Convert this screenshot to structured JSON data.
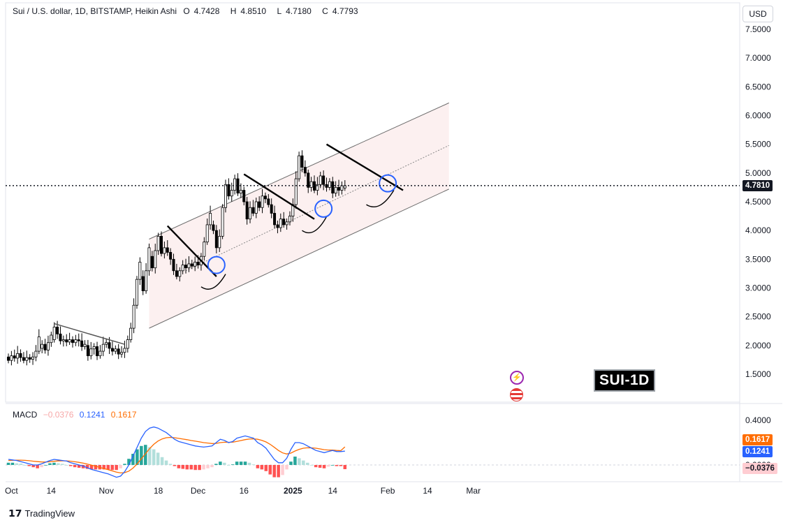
{
  "header": {
    "symbol": "Sui / U.S. dollar, 1D, BITSTAMP, Heikin Ashi",
    "open_label": "O",
    "open": "4.7428",
    "high_label": "H",
    "high": "4.8510",
    "low_label": "L",
    "low": "4.7180",
    "close_label": "C",
    "close": "4.7793"
  },
  "currency_button": "USD",
  "current_price": "4.7810",
  "watermark_label": "SUI-1D",
  "macd": {
    "title": "MACD",
    "histogram": "−0.0376",
    "macd_line": "0.1241",
    "signal_line": "0.1617",
    "histogram_tag": "−0.0376",
    "macd_tag": "0.1241",
    "signal_tag": "0.1617"
  },
  "branding": {
    "logo": "TradingView"
  },
  "icons": {
    "event_1": "lightning-icon",
    "event_2": "us-flag-icon"
  },
  "colors": {
    "up": "#ffffff",
    "down": "#000000",
    "channel_fill": "#f9e3e3",
    "macd_line": "#2962ff",
    "signal_line": "#ff6d00",
    "hist_up_strong": "#26a69a",
    "hist_up_weak": "#b2dfdb",
    "hist_down_strong": "#ff5252",
    "hist_down_weak": "#ffcdd2"
  },
  "chart_data": [
    {
      "type": "candlestick",
      "style": "heikin-ashi",
      "y_axis_ticks": [
        "7.5000",
        "7.0000",
        "6.5000",
        "6.0000",
        "5.5000",
        "5.0000",
        "4.5000",
        "4.0000",
        "3.5000",
        "3.0000",
        "2.5000",
        "2.0000",
        "1.5000"
      ],
      "x_axis_ticks": [
        "Oct",
        "14",
        "Nov",
        "18",
        "Dec",
        "16",
        "2025",
        "14",
        "Feb",
        "14",
        "Mar"
      ],
      "ylim": [
        1.2,
        7.7
      ],
      "day_start": "2024-09-30",
      "candles": [
        [
          1.8,
          1.74
        ],
        [
          1.74,
          1.82
        ],
        [
          1.82,
          1.78
        ],
        [
          1.78,
          1.86
        ],
        [
          1.86,
          1.79
        ],
        [
          1.79,
          1.74
        ],
        [
          1.74,
          1.79
        ],
        [
          1.79,
          1.76
        ],
        [
          1.76,
          1.8
        ],
        [
          1.8,
          1.9
        ],
        [
          1.9,
          2.15
        ],
        [
          1.95,
          2.02
        ],
        [
          2.02,
          1.92
        ],
        [
          1.92,
          2.05
        ],
        [
          2.05,
          2.18
        ],
        [
          2.1,
          2.32
        ],
        [
          2.32,
          2.2
        ],
        [
          2.2,
          2.08
        ],
        [
          2.08,
          2.1
        ],
        [
          2.1,
          2.06
        ],
        [
          2.06,
          2.1
        ],
        [
          2.1,
          2.05
        ],
        [
          2.05,
          2.1
        ],
        [
          2.1,
          2.08
        ],
        [
          2.08,
          1.98
        ],
        [
          1.98,
          2.02
        ],
        [
          2.0,
          1.82
        ],
        [
          1.82,
          1.94
        ],
        [
          1.94,
          1.98
        ],
        [
          1.98,
          1.82
        ],
        [
          1.82,
          1.9
        ],
        [
          1.9,
          2.02
        ],
        [
          2.02,
          2.05
        ],
        [
          2.05,
          1.95
        ],
        [
          1.95,
          1.9
        ],
        [
          1.9,
          1.94
        ],
        [
          1.94,
          1.85
        ],
        [
          1.85,
          1.88
        ],
        [
          1.88,
          1.95
        ],
        [
          1.95,
          2.1
        ],
        [
          2.1,
          2.3
        ],
        [
          2.3,
          2.7
        ],
        [
          2.7,
          3.15
        ],
        [
          3.15,
          3.45
        ],
        [
          3.2,
          2.95
        ],
        [
          2.95,
          3.3
        ],
        [
          3.3,
          3.7
        ],
        [
          3.55,
          3.35
        ],
        [
          3.35,
          3.65
        ],
        [
          3.65,
          3.9
        ],
        [
          3.9,
          3.6
        ],
        [
          3.6,
          3.7
        ],
        [
          3.7,
          3.62
        ],
        [
          3.62,
          3.5
        ],
        [
          3.5,
          3.3
        ],
        [
          3.3,
          3.2
        ],
        [
          3.2,
          3.3
        ],
        [
          3.3,
          3.4
        ],
        [
          3.4,
          3.35
        ],
        [
          3.35,
          3.42
        ],
        [
          3.42,
          3.38
        ],
        [
          3.38,
          3.45
        ],
        [
          3.45,
          3.4
        ],
        [
          3.4,
          3.55
        ],
        [
          3.55,
          3.8
        ],
        [
          3.8,
          4.1
        ],
        [
          4.1,
          4.3
        ],
        [
          4.1,
          4.0
        ],
        [
          4.0,
          3.7
        ],
        [
          3.7,
          3.9
        ],
        [
          3.9,
          4.4
        ],
        [
          4.4,
          4.8
        ],
        [
          4.8,
          4.6
        ],
        [
          4.6,
          4.7
        ],
        [
          4.7,
          4.9
        ],
        [
          4.9,
          4.65
        ],
        [
          4.65,
          4.7
        ],
        [
          4.7,
          4.5
        ],
        [
          4.5,
          4.2
        ],
        [
          4.2,
          4.4
        ],
        [
          4.4,
          4.3
        ],
        [
          4.3,
          4.5
        ],
        [
          4.5,
          4.4
        ],
        [
          4.4,
          4.6
        ],
        [
          4.6,
          4.55
        ],
        [
          4.55,
          4.45
        ],
        [
          4.45,
          4.3
        ],
        [
          4.3,
          4.1
        ],
        [
          4.1,
          4.05
        ],
        [
          4.05,
          4.2
        ],
        [
          4.2,
          4.1
        ],
        [
          4.1,
          4.15
        ],
        [
          4.15,
          4.25
        ],
        [
          4.25,
          4.45
        ],
        [
          4.45,
          4.9
        ],
        [
          4.9,
          5.3
        ],
        [
          5.3,
          5.1
        ],
        [
          5.1,
          5.0
        ],
        [
          5.0,
          4.75
        ],
        [
          4.75,
          4.85
        ],
        [
          4.85,
          4.7
        ],
        [
          4.7,
          4.8
        ],
        [
          4.8,
          4.95
        ],
        [
          4.95,
          4.8
        ],
        [
          4.8,
          4.75
        ],
        [
          4.75,
          4.85
        ],
        [
          4.85,
          4.65
        ],
        [
          4.65,
          4.75
        ],
        [
          4.75,
          4.7
        ],
        [
          4.7,
          4.78
        ],
        [
          4.74,
          4.78
        ]
      ],
      "channel": {
        "lower": [
          [
            46,
            2.3
          ],
          [
            144,
            4.72
          ]
        ],
        "upper": [
          [
            46,
            3.85
          ],
          [
            144,
            6.22
          ]
        ],
        "mid": [
          [
            58,
            3.3
          ],
          [
            144,
            5.48
          ]
        ]
      },
      "trendlines": [
        [
          [
            15,
            2.38
          ],
          [
            38,
            2.02
          ]
        ],
        [
          [
            52,
            4.08
          ],
          [
            68,
            3.2
          ]
        ],
        [
          [
            77,
            4.98
          ],
          [
            100,
            4.2
          ]
        ],
        [
          [
            104,
            5.5
          ],
          [
            129,
            4.7
          ]
        ]
      ],
      "markers": [
        [
          68,
          3.4
        ],
        [
          103,
          4.38
        ],
        [
          124,
          4.82
        ]
      ],
      "cups": [
        [
          [
            63,
            3.02
          ],
          [
            71,
            3.12
          ]
        ],
        [
          [
            96,
            4.0
          ],
          [
            104,
            4.12
          ]
        ],
        [
          [
            117,
            4.45
          ],
          [
            126,
            4.58
          ]
        ]
      ]
    },
    {
      "type": "macd",
      "ylim": [
        -0.14,
        0.46
      ],
      "y_axis_ticks": [
        "0.4000",
        "0.2000",
        "0.0000"
      ],
      "macd_line": [
        0.05,
        0.045,
        0.04,
        0.03,
        0.02,
        0.01,
        0.0,
        0.0,
        0.01,
        0.025,
        0.04,
        0.05,
        0.045,
        0.04,
        0.035,
        0.02,
        0.01,
        0.0,
        -0.01,
        -0.025,
        -0.04,
        -0.05,
        -0.06,
        -0.07,
        -0.08,
        -0.095,
        -0.11,
        -0.1,
        -0.06,
        0.0,
        0.08,
        0.16,
        0.24,
        0.3,
        0.33,
        0.34,
        0.33,
        0.31,
        0.29,
        0.26,
        0.23,
        0.21,
        0.2,
        0.19,
        0.18,
        0.17,
        0.165,
        0.16,
        0.165,
        0.17,
        0.2,
        0.23,
        0.22,
        0.2,
        0.21,
        0.24,
        0.25,
        0.26,
        0.25,
        0.24,
        0.2,
        0.18,
        0.15,
        0.1,
        0.05,
        0.02,
        0.02,
        0.06,
        0.14,
        0.2,
        0.2,
        0.19,
        0.17,
        0.15,
        0.13,
        0.12,
        0.11,
        0.12,
        0.13,
        0.12,
        0.12,
        0.124
      ],
      "signal_line": [
        0.04,
        0.042,
        0.043,
        0.043,
        0.041,
        0.038,
        0.034,
        0.03,
        0.027,
        0.026,
        0.029,
        0.033,
        0.036,
        0.037,
        0.037,
        0.034,
        0.029,
        0.023,
        0.016,
        0.008,
        -0.002,
        -0.012,
        -0.022,
        -0.032,
        -0.042,
        -0.053,
        -0.064,
        -0.071,
        -0.069,
        -0.055,
        -0.028,
        0.01,
        0.055,
        0.1,
        0.146,
        0.185,
        0.214,
        0.233,
        0.244,
        0.247,
        0.244,
        0.238,
        0.232,
        0.226,
        0.219,
        0.213,
        0.207,
        0.2,
        0.196,
        0.192,
        0.193,
        0.2,
        0.204,
        0.203,
        0.204,
        0.211,
        0.219,
        0.227,
        0.232,
        0.234,
        0.23,
        0.22,
        0.206,
        0.185,
        0.158,
        0.13,
        0.108,
        0.098,
        0.106,
        0.125,
        0.14,
        0.15,
        0.154,
        0.153,
        0.15,
        0.144,
        0.137,
        0.134,
        0.133,
        0.13,
        0.128,
        0.1617
      ],
      "histogram": [
        0.02,
        0.02,
        0.015,
        0.012,
        0.0,
        -0.01,
        -0.02,
        -0.03,
        -0.02,
        0.0,
        0.015,
        0.02,
        0.015,
        0.01,
        0.0,
        -0.01,
        -0.02,
        -0.025,
        -0.03,
        -0.035,
        -0.04,
        -0.04,
        -0.04,
        -0.04,
        -0.042,
        -0.045,
        -0.045,
        -0.03,
        0.01,
        0.055,
        0.1,
        0.14,
        0.17,
        0.18,
        0.16,
        0.14,
        0.11,
        0.07,
        0.04,
        0.01,
        -0.01,
        -0.03,
        -0.035,
        -0.04,
        -0.04,
        -0.045,
        -0.045,
        -0.04,
        -0.03,
        -0.02,
        0.01,
        0.03,
        0.02,
        0.0,
        0.005,
        0.03,
        0.03,
        0.03,
        0.02,
        0.005,
        -0.03,
        -0.04,
        -0.055,
        -0.085,
        -0.11,
        -0.11,
        -0.09,
        -0.04,
        0.03,
        0.075,
        0.06,
        0.04,
        0.02,
        0.0,
        -0.02,
        -0.025,
        -0.03,
        -0.015,
        0.0,
        -0.01,
        -0.01,
        -0.0376
      ]
    }
  ]
}
